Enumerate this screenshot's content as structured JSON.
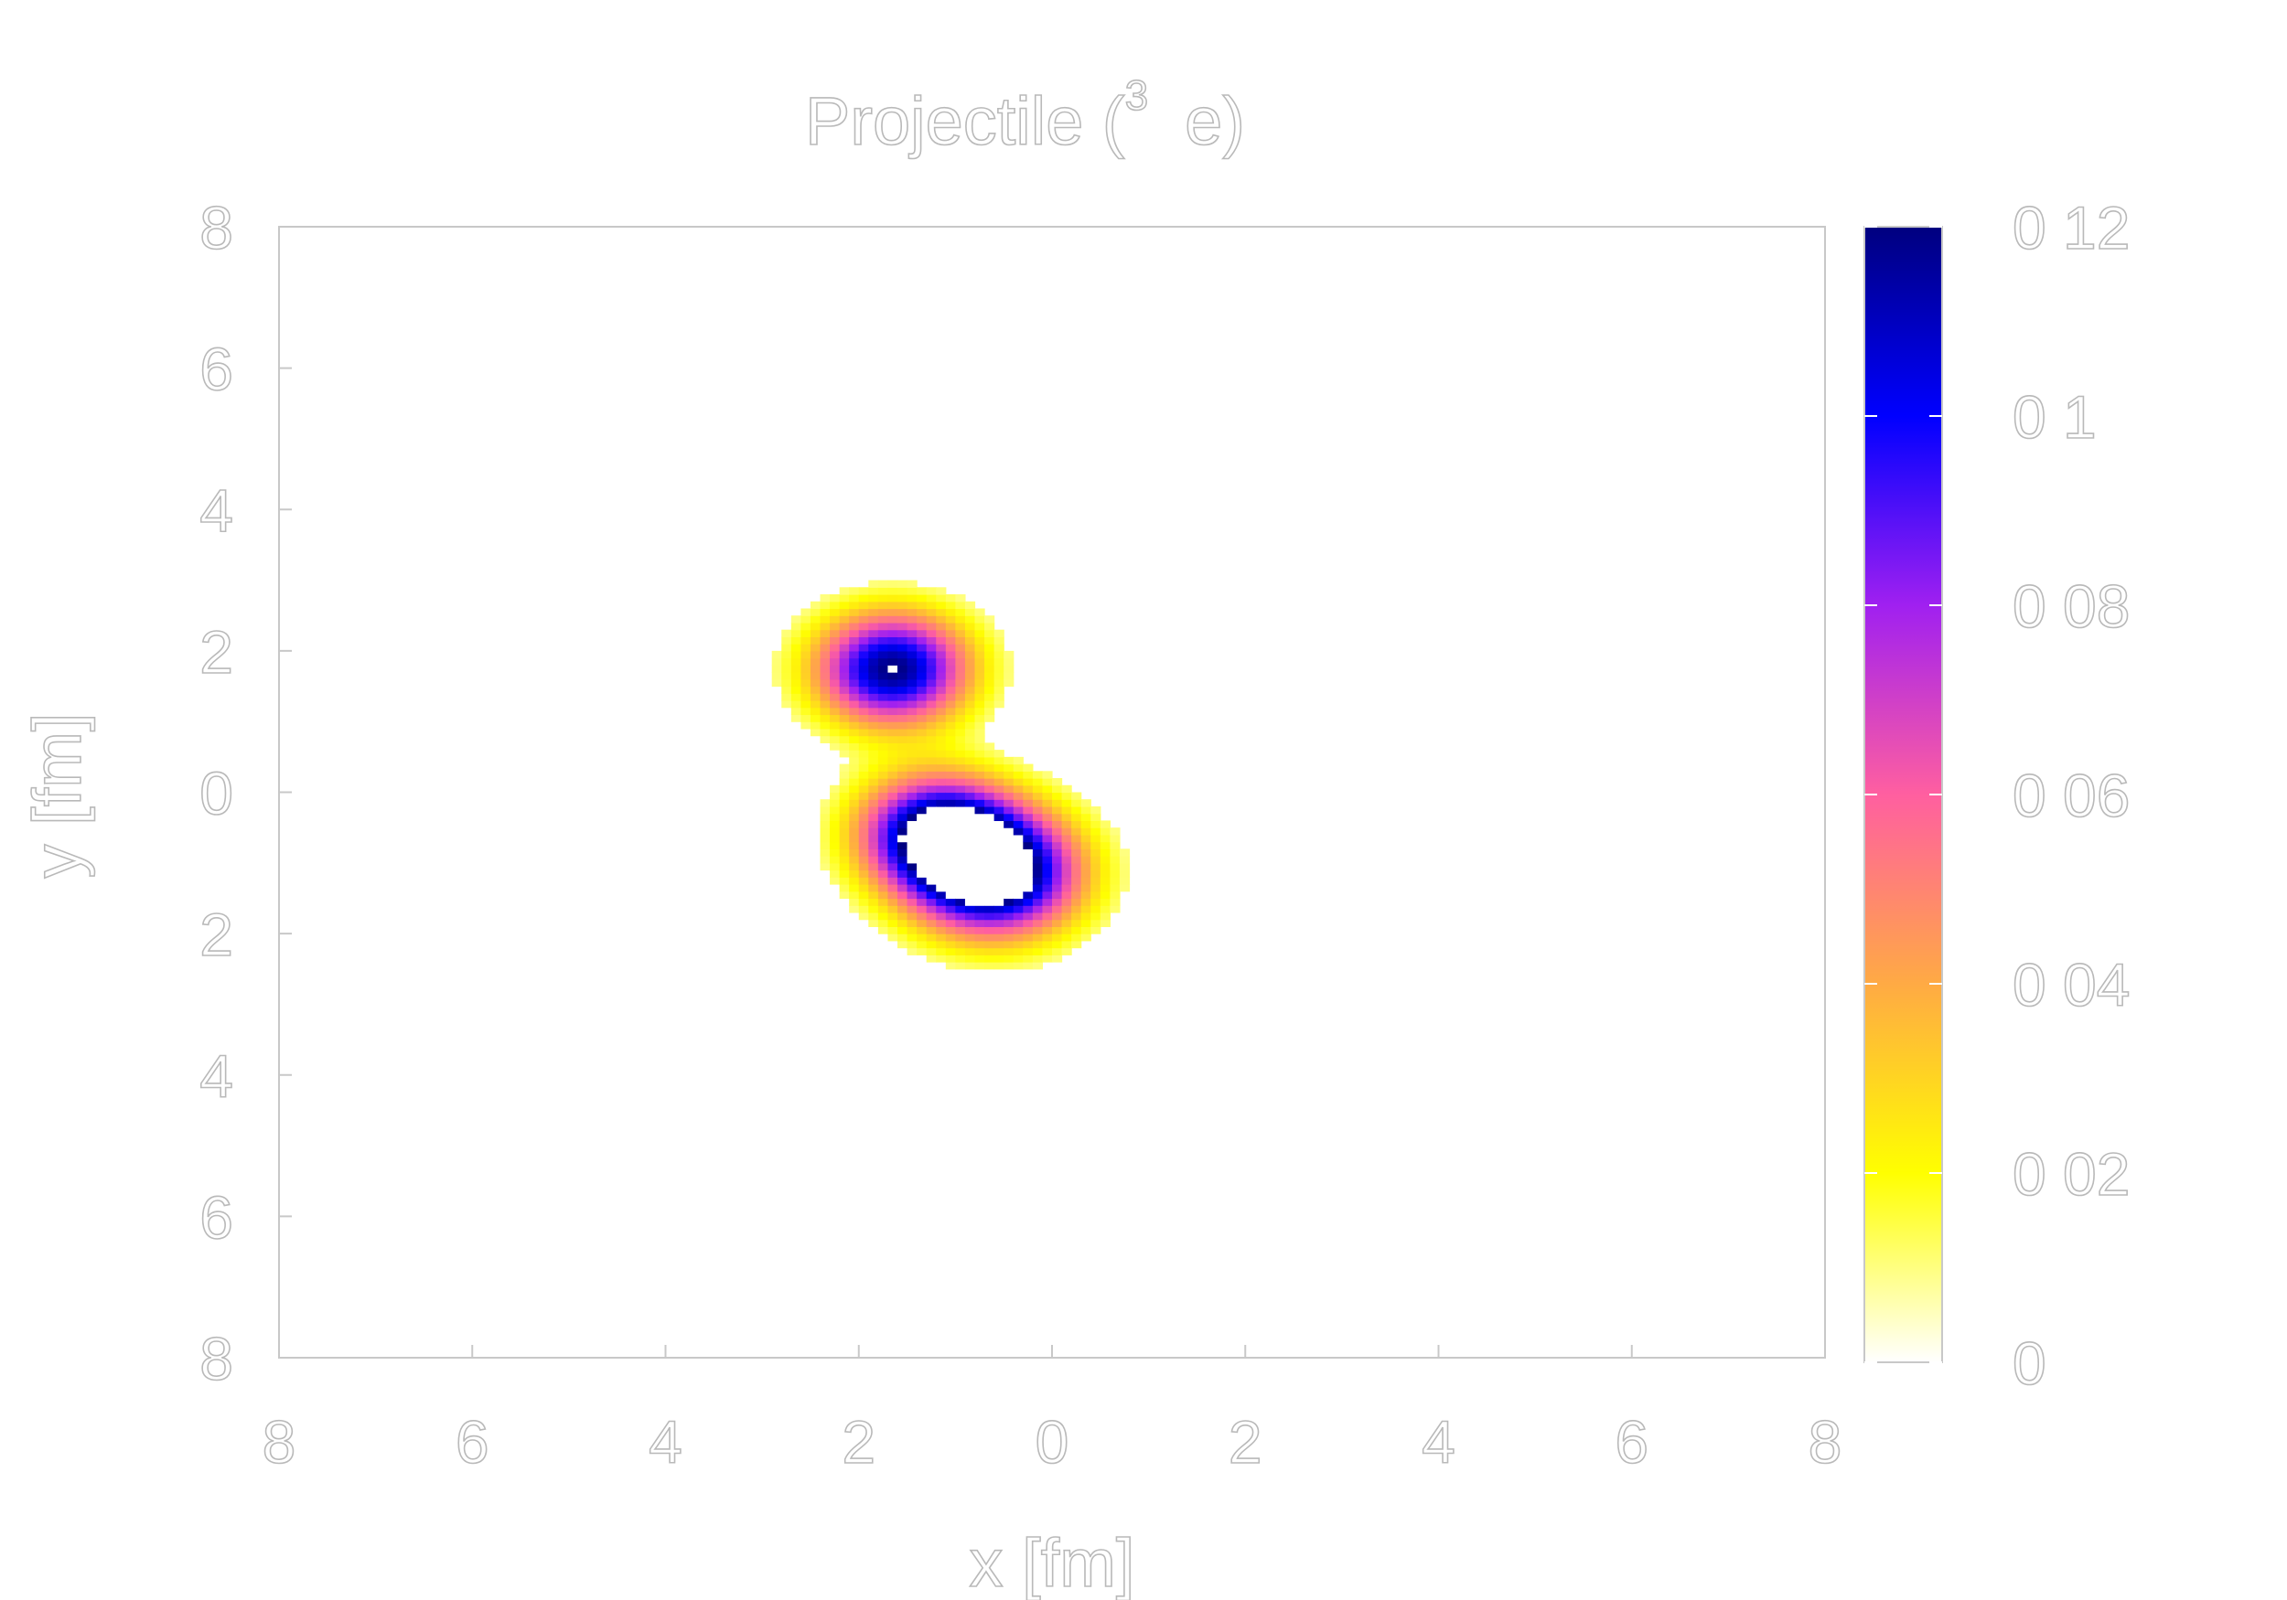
{
  "chart_data": {
    "type": "heatmap",
    "title": "Projectile (",
    "title_superscript": "3",
    "title_suffix": "e)",
    "xlabel": "x [fm]",
    "ylabel": "y [fm]",
    "xlim": [
      -8,
      8
    ],
    "ylim": [
      -8,
      8
    ],
    "x_ticks": [
      -8,
      -6,
      -4,
      -2,
      0,
      2,
      4,
      6,
      8
    ],
    "y_ticks": [
      8,
      6,
      4,
      2,
      0,
      -2,
      -4,
      -6,
      -8
    ],
    "x_tick_labels": [
      "8",
      "6",
      "4",
      "2",
      "0",
      "2",
      "4",
      "6",
      "8"
    ],
    "y_tick_labels": [
      "8",
      "6",
      "4",
      "2",
      "0",
      "2",
      "4",
      "6",
      "8"
    ],
    "colorbar": {
      "range": [
        0,
        0.12
      ],
      "ticks": [
        0,
        0.02,
        0.04,
        0.06,
        0.08,
        0.1,
        0.12
      ],
      "tick_labels": [
        "0",
        "0 02",
        "0 04",
        "0 06",
        "0 08",
        "0 1",
        "0 12"
      ],
      "colors": [
        "#ffffff",
        "#ffff00",
        "#ffaa44",
        "#ff5fa0",
        "#a020f0",
        "#0000ff",
        "#00007f"
      ]
    },
    "nucleons": [
      {
        "x": -1.65,
        "y": 1.75,
        "peak": 0.12,
        "sigma": 0.55
      },
      {
        "x": -1.2,
        "y": -0.55,
        "peak": 0.115,
        "sigma": 0.55
      },
      {
        "x": -0.6,
        "y": -1.15,
        "peak": 0.14,
        "sigma": 0.6
      }
    ],
    "threshold": 0.01,
    "grid": false
  }
}
